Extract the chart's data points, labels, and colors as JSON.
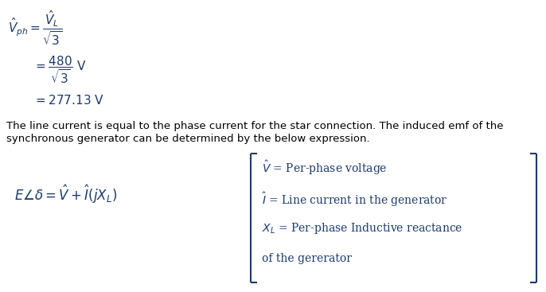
{
  "bg_color": "#ffffff",
  "text_color": "#1a3a6b",
  "fig_width": 6.86,
  "fig_height": 3.67,
  "eq1_line1": "$\\hat{V}_{ph} = \\dfrac{\\hat{V}_L}{\\sqrt{3}}$",
  "eq1_line2": "$= \\dfrac{480}{\\sqrt{3}} \\ \\mathrm{V}$",
  "eq1_line3": "$= 277.13\\ \\mathrm{V}$",
  "para_text1": "The line current is equal to the phase current for the star connection. The induced emf of the",
  "para_text2": "synchronous generator can be determined by the below expression.",
  "eq_main": "$E\\angle\\delta = \\hat{V} + \\hat{I}\\left(jX_L\\right)$",
  "box_line1": "$\\hat{V}$ = Per-phase voltage",
  "box_line2": "$\\hat{I}$ = Line current in the generator",
  "box_line3": "$X_L$ = Per-phase Inductive reactance",
  "box_line4": "of the gererator",
  "font_size_eq": 11,
  "font_size_text": 9.5,
  "font_size_box": 10,
  "text_color_body": "#000000"
}
